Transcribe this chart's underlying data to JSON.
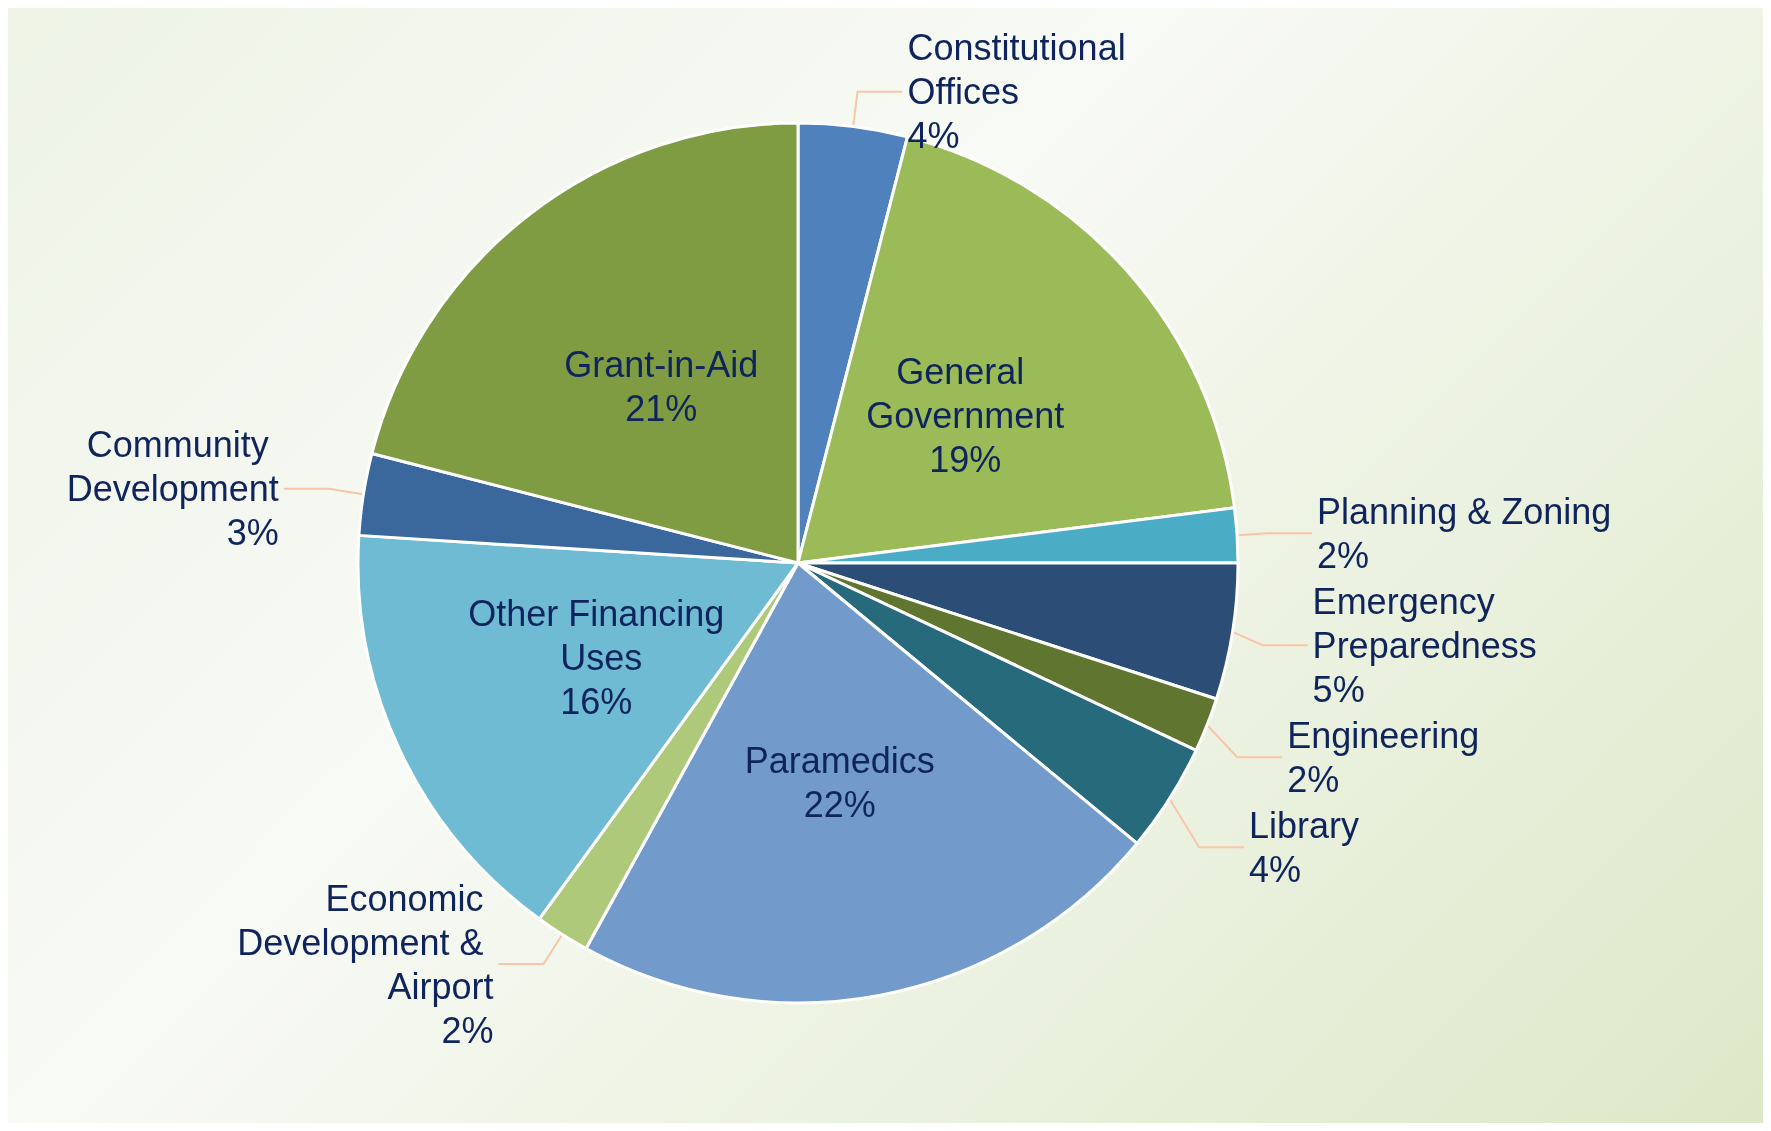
{
  "chart_data": {
    "type": "pie",
    "categories": [
      "Constitutional Offices",
      "General Government",
      "Planning & Zoning",
      "Emergency Preparedness",
      "Engineering",
      "Library",
      "Paramedics",
      "Economic Development & Airport",
      "Other Financing Uses",
      "Community Development",
      "Grant-in-Aid"
    ],
    "values": [
      4,
      19,
      2,
      5,
      2,
      4,
      22,
      2,
      16,
      3,
      21
    ],
    "value_labels": [
      "4%",
      "19%",
      "2%",
      "5%",
      "2%",
      "4%",
      "22%",
      "2%",
      "16%",
      "3%",
      "21%"
    ],
    "colors": [
      "#4f81bd",
      "#9bbb59",
      "#4bacc6",
      "#2c4d75",
      "#5f7530",
      "#276a7c",
      "#729aca",
      "#afc97a",
      "#6fbbd3",
      "#3a679c",
      "#7f9c42"
    ],
    "legend": false
  }
}
